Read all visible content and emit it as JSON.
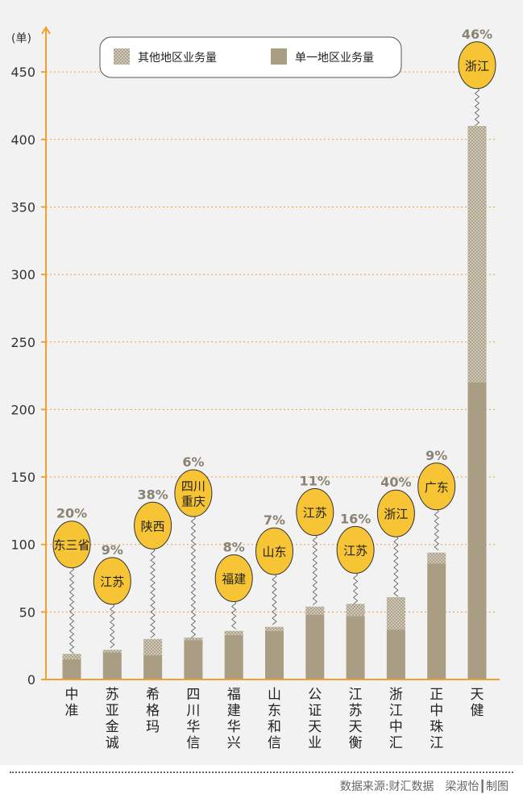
{
  "chart_data": {
    "type": "bar",
    "stacked": true,
    "unit_label": "(单)",
    "yticks": [
      0,
      50,
      100,
      150,
      200,
      250,
      300,
      350,
      400,
      450
    ],
    "ylim": [
      0,
      470
    ],
    "grid": true,
    "legend_position": "top",
    "series": [
      {
        "name": "单一地区业务量",
        "color": "#a99e84",
        "values": [
          15,
          20,
          18,
          29,
          33,
          36,
          48,
          47,
          37,
          86,
          220
        ]
      },
      {
        "name": "其他地区业务量",
        "color": "#cfc6b3",
        "pattern": "crosshatch",
        "values": [
          4,
          2,
          12,
          2,
          3,
          3,
          6,
          9,
          24,
          8,
          190
        ]
      }
    ],
    "categories": [
      {
        "label": "中准",
        "chars": [
          "中",
          "准"
        ],
        "pct": "20%",
        "province": "东三省",
        "province_lines": [
          "东三省"
        ],
        "bubble_y": 100
      },
      {
        "label": "苏亚金诚",
        "chars": [
          "苏",
          "亚",
          "金",
          "诚"
        ],
        "pct": "9%",
        "province": "江苏",
        "province_lines": [
          "江苏"
        ],
        "bubble_y": 73
      },
      {
        "label": "希格玛",
        "chars": [
          "希",
          "格",
          "玛"
        ],
        "pct": "38%",
        "province": "陕西",
        "province_lines": [
          "陕西"
        ],
        "bubble_y": 114
      },
      {
        "label": "四川华信",
        "chars": [
          "四",
          "川",
          "华",
          "信"
        ],
        "pct": "6%",
        "province": "四川重庆",
        "province_lines": [
          "四川",
          "重庆"
        ],
        "bubble_y": 138
      },
      {
        "label": "福建华兴",
        "chars": [
          "福",
          "建",
          "华",
          "兴"
        ],
        "pct": "8%",
        "province": "福建",
        "province_lines": [
          "福建"
        ],
        "bubble_y": 75
      },
      {
        "label": "山东和信",
        "chars": [
          "山",
          "东",
          "和",
          "信"
        ],
        "pct": "7%",
        "province": "山东",
        "province_lines": [
          "山东"
        ],
        "bubble_y": 95
      },
      {
        "label": "公证天业",
        "chars": [
          "公",
          "证",
          "天",
          "业"
        ],
        "pct": "11%",
        "province": "江苏",
        "province_lines": [
          "江苏"
        ],
        "bubble_y": 124
      },
      {
        "label": "江苏天衡",
        "chars": [
          "江",
          "苏",
          "天",
          "衡"
        ],
        "pct": "16%",
        "province": "江苏",
        "province_lines": [
          "江苏"
        ],
        "bubble_y": 96
      },
      {
        "label": "浙江中汇",
        "chars": [
          "浙",
          "江",
          "中",
          "汇"
        ],
        "pct": "40%",
        "province": "浙江",
        "province_lines": [
          "浙江"
        ],
        "bubble_y": 123
      },
      {
        "label": "正中珠江",
        "chars": [
          "正",
          "中",
          "珠",
          "江"
        ],
        "pct": "9%",
        "province": "广东",
        "province_lines": [
          "广东"
        ],
        "bubble_y": 143
      },
      {
        "label": "天健",
        "chars": [
          "天",
          "健"
        ],
        "pct": "46%",
        "province": "浙江",
        "province_lines": [
          "浙江"
        ],
        "bubble_y": 455
      }
    ],
    "colors": {
      "axis": "#f0a030",
      "grid": "#f0a030",
      "bubble": "#f6c435",
      "bubble_border": "#333333",
      "pct_text": "#8a8272"
    }
  },
  "footer": {
    "source": "数据来源:财汇数据　梁淑怡┃制图"
  }
}
